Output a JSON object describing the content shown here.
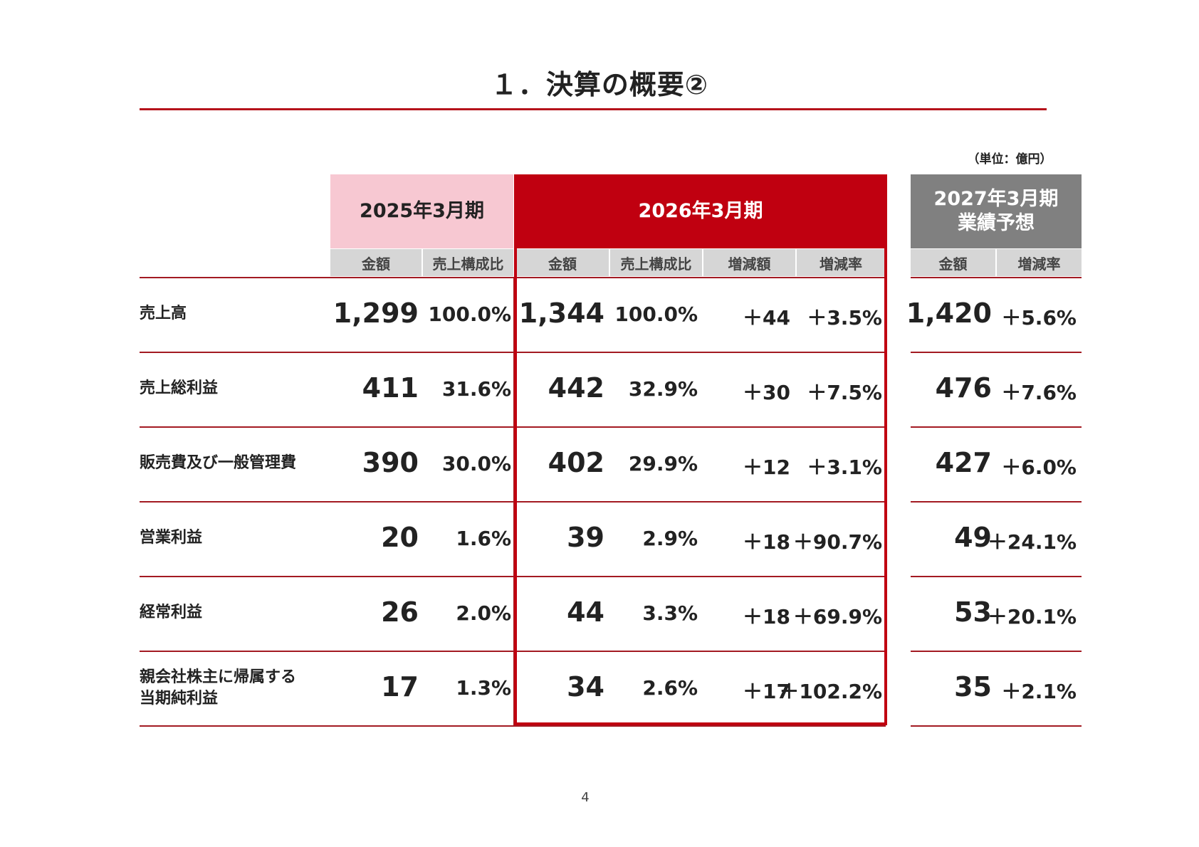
{
  "title": "１．決算の概要②",
  "unit_note": "（単位：億円）",
  "headers": {
    "fy2025": "2025年3月期",
    "fy2026": "2026年3月期",
    "fy2027_line1": "2027年3月期",
    "fy2027_line2": "業績予想"
  },
  "subheaders": {
    "fy2025": [
      "金額",
      "売上構成比"
    ],
    "fy2026": [
      "金額",
      "売上構成比",
      "増減額",
      "増減率"
    ],
    "fy2027": [
      "金額",
      "増減率"
    ]
  },
  "rows": [
    {
      "label_line1": "売上高",
      "label_line2": "",
      "fy25_amount": "1,299",
      "fy25_ratio": "100.0%",
      "fy26_amount": "1,344",
      "fy26_ratio": "100.0%",
      "fy26_change": "＋44",
      "fy26_change_rate": "＋3.5%",
      "fy27_amount": "1,420",
      "fy27_change_rate": "＋5.6%"
    },
    {
      "label_line1": "売上総利益",
      "label_line2": "",
      "fy25_amount": "411",
      "fy25_ratio": "31.6%",
      "fy26_amount": "442",
      "fy26_ratio": "32.9%",
      "fy26_change": "＋30",
      "fy26_change_rate": "＋7.5%",
      "fy27_amount": "476",
      "fy27_change_rate": "＋7.6%"
    },
    {
      "label_line1": "販売費及び一般管理費",
      "label_line2": "",
      "fy25_amount": "390",
      "fy25_ratio": "30.0%",
      "fy26_amount": "402",
      "fy26_ratio": "29.9%",
      "fy26_change": "＋12",
      "fy26_change_rate": "＋3.1%",
      "fy27_amount": "427",
      "fy27_change_rate": "＋6.0%"
    },
    {
      "label_line1": "営業利益",
      "label_line2": "",
      "fy25_amount": "20",
      "fy25_ratio": "1.6%",
      "fy26_amount": "39",
      "fy26_ratio": "2.9%",
      "fy26_change": "＋18",
      "fy26_change_rate": "＋90.7%",
      "fy27_amount": "49",
      "fy27_change_rate": "＋24.1%"
    },
    {
      "label_line1": "経常利益",
      "label_line2": "",
      "fy25_amount": "26",
      "fy25_ratio": "2.0%",
      "fy26_amount": "44",
      "fy26_ratio": "3.3%",
      "fy26_change": "＋18",
      "fy26_change_rate": "＋69.9%",
      "fy27_amount": "53",
      "fy27_change_rate": "＋20.1%"
    },
    {
      "label_line1": "親会社株主に帰属する",
      "label_line2": "当期純利益",
      "fy25_amount": "17",
      "fy25_ratio": "1.3%",
      "fy26_amount": "34",
      "fy26_ratio": "2.6%",
      "fy26_change": "＋17",
      "fy26_change_rate": "＋102.2%",
      "fy27_amount": "35",
      "fy27_change_rate": "＋2.1%"
    }
  ],
  "page_number": "4",
  "colors": {
    "accent_red": "#c00010",
    "rule_red": "#a31a22",
    "pink": "#f7c8d2",
    "gray": "#808080",
    "subheader_gray": "#d6d6d6"
  }
}
